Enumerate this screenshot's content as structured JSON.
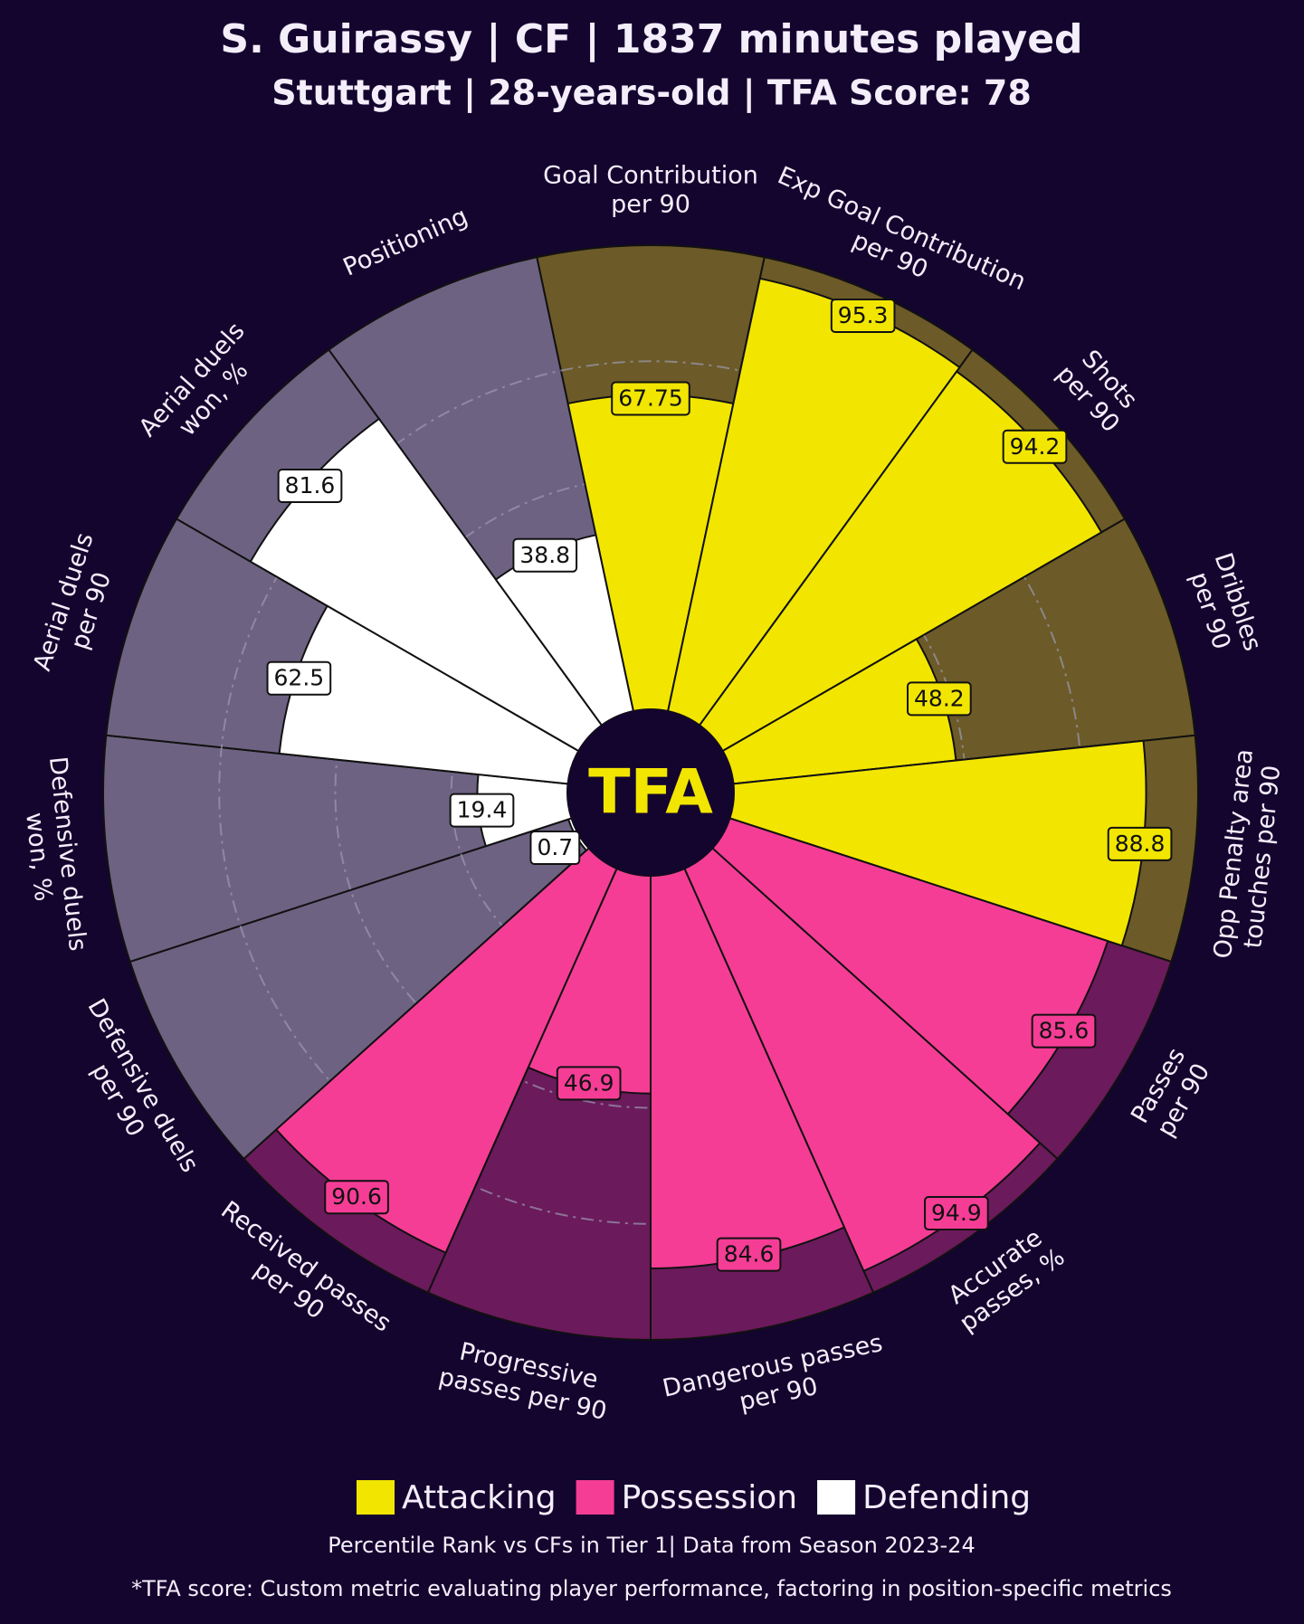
{
  "chart_data": {
    "type": "pizza",
    "title": "S. Guirassy | CF | 1837 minutes played",
    "subtitle": "Stuttgart | 28-years-old | TFA Score: 78",
    "center_label": "TFA",
    "categories": [
      [
        "Goal Contribution",
        "per 90"
      ],
      [
        "Exp Goal Contribution",
        "per 90"
      ],
      [
        "Shots",
        "per 90"
      ],
      [
        "Dribbles",
        "per 90"
      ],
      [
        "Opp Penalty area",
        "touches per 90"
      ],
      [
        "Passes",
        "per 90"
      ],
      [
        "Accurate",
        "passes, %"
      ],
      [
        "Dangerous passes",
        "per 90"
      ],
      [
        "Progressive",
        "passes per 90"
      ],
      [
        "Received passes",
        "per 90"
      ],
      [
        "Defensive duels",
        "per 90"
      ],
      [
        "Defensive duels",
        "won, %"
      ],
      [
        "Aerial duels",
        "per 90"
      ],
      [
        "Aerial duels",
        "won, %"
      ],
      [
        "Positioning"
      ]
    ],
    "values": [
      67.75,
      95.3,
      94.2,
      48.2,
      88.8,
      85.6,
      94.9,
      84.6,
      46.9,
      90.6,
      0.7,
      19.4,
      62.5,
      81.6,
      38.8
    ],
    "groups": [
      0,
      0,
      0,
      0,
      0,
      1,
      1,
      1,
      1,
      1,
      2,
      2,
      2,
      2,
      2
    ],
    "legend": [
      {
        "name": "Attacking",
        "color": "#f2e600",
        "background_color": "#6c5a28"
      },
      {
        "name": "Possession",
        "color": "#f53d96",
        "background_color": "#6b1a5c"
      },
      {
        "name": "Defending",
        "color": "#ffffff",
        "background_color": "#6e6282"
      }
    ],
    "rlim": [
      0,
      100
    ],
    "rticks": [
      25,
      50,
      75
    ],
    "grid": true,
    "caption": "Percentile Rank vs CFs in Tier 1| Data from Season 2023-24",
    "footnote": "*TFA score: Custom metric evaluating player performance, factoring in position-specific metrics"
  }
}
